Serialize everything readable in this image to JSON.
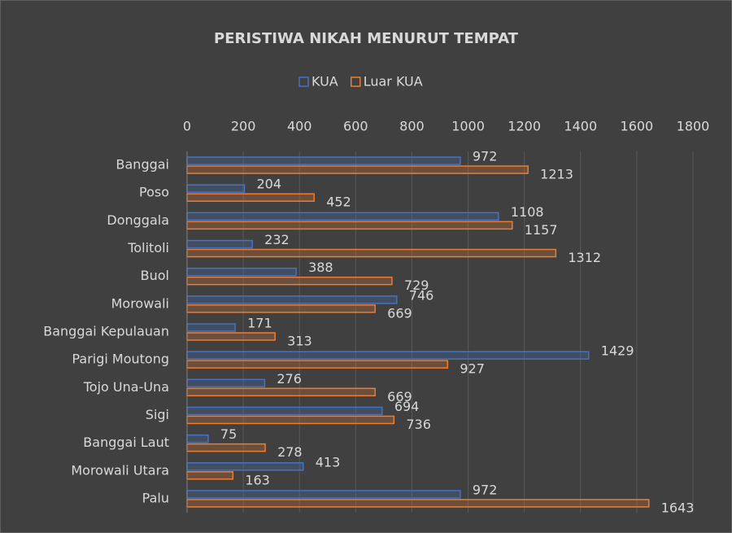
{
  "chart_data": {
    "type": "hbar",
    "title": "PERISTIWA NIKAH MENURUT TEMPAT",
    "categories": [
      "Banggai",
      "Poso",
      "Donggala",
      "Tolitoli",
      "Buol",
      "Morowali",
      "Banggai Kepulauan",
      "Parigi Moutong",
      "Tojo Una-Una",
      "Sigi",
      "Banggai Laut",
      "Morowali Utara",
      "Palu"
    ],
    "series": [
      {
        "name": "KUA",
        "color": "#4472c4",
        "values": [
          972,
          204,
          1108,
          232,
          388,
          746,
          171,
          1429,
          276,
          694,
          75,
          413,
          972
        ]
      },
      {
        "name": "Luar KUA",
        "color": "#ed7d31",
        "values": [
          1213,
          452,
          1157,
          1312,
          729,
          669,
          313,
          927,
          669,
          736,
          278,
          163,
          1643
        ]
      }
    ],
    "xlim": [
      0,
      1800
    ],
    "xticks": [
      0,
      200,
      400,
      600,
      800,
      1000,
      1200,
      1400,
      1600,
      1800
    ],
    "grid": true,
    "legend": "top"
  }
}
